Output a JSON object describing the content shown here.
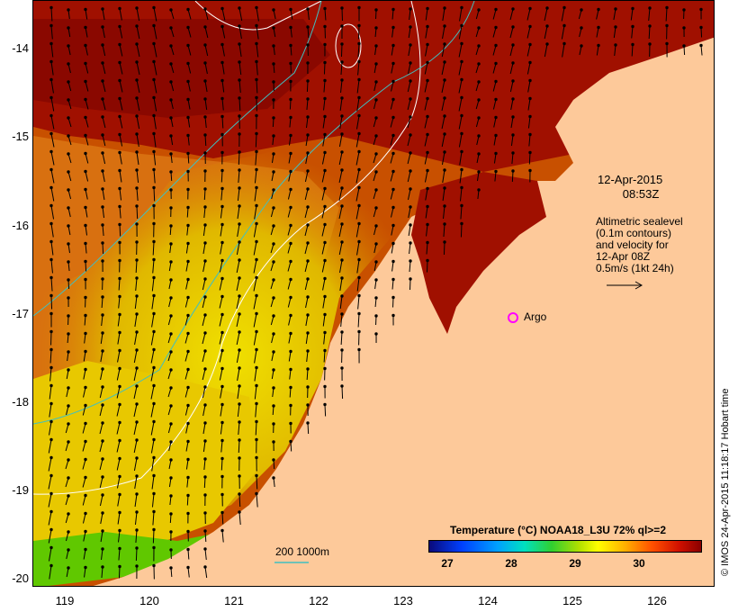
{
  "map": {
    "y_ticks": [
      "-14",
      "-15",
      "-16",
      "-17",
      "-18",
      "-19",
      "-20"
    ],
    "x_ticks": [
      "119",
      "120",
      "121",
      "122",
      "123",
      "124",
      "125",
      "126"
    ],
    "date_line1": "12-Apr-2015",
    "date_line2": "08:53Z",
    "altimetry_lines": [
      "Altimetric sealevel",
      "(0.1m contours)",
      "and velocity for",
      "12-Apr 08Z",
      "0.5m/s (1kt 24h)"
    ],
    "argo_label": "Argo",
    "credit": "© IMOS 24-Apr-2015 11:18:17 Hobart time",
    "colorbar_title": "Temperature (°C) NOAA18_L3U 72% ql>=2",
    "colorbar_ticks": [
      "27",
      "28",
      "29",
      "30"
    ],
    "depth_label": "200  1000m",
    "colors": {
      "land": "#fdc99a",
      "warm": "#a01000",
      "hot": "#c82000",
      "mid": "#e07818",
      "yellow": "#e8d000",
      "cool": "#40c000",
      "contour": "#ffffff",
      "bathymetry": "#40c0c0",
      "argo": "#ff00ff"
    }
  }
}
